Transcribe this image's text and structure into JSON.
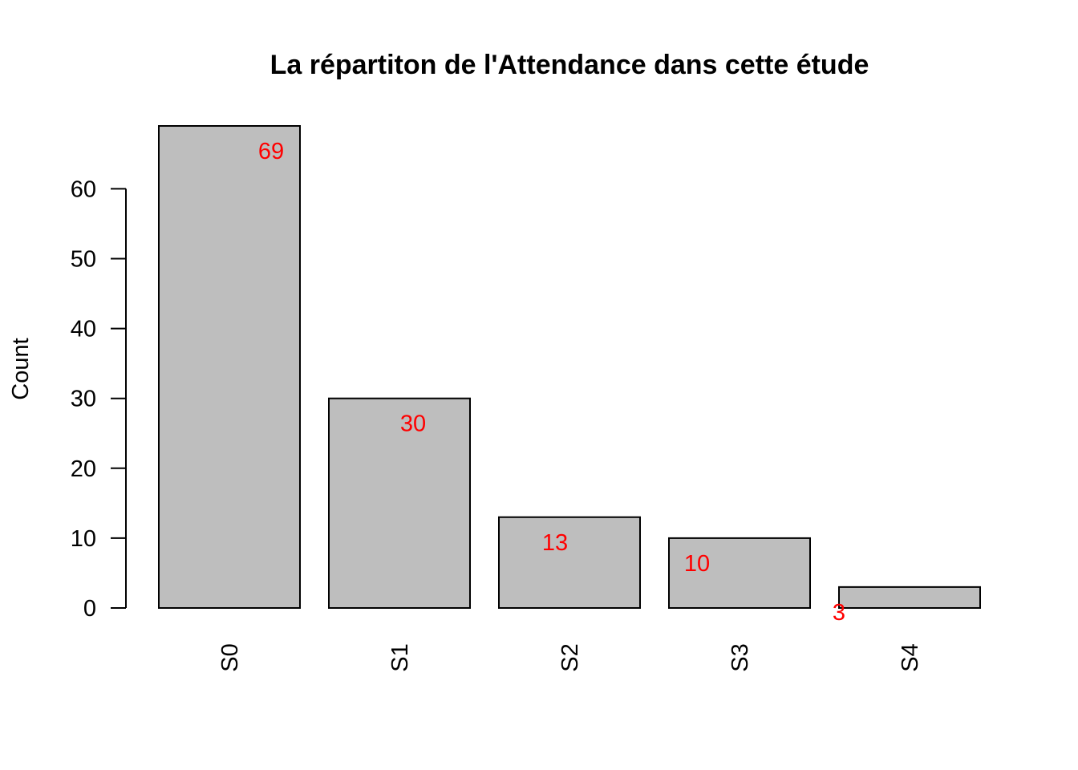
{
  "chart_data": {
    "type": "bar",
    "title": "La répartiton de l'Attendance dans cette étude",
    "xlabel": "",
    "ylabel": "Count",
    "categories": [
      "S0",
      "S1",
      "S2",
      "S3",
      "S4"
    ],
    "values": [
      69,
      30,
      13,
      10,
      3
    ],
    "data_labels": [
      "69",
      "30",
      "13",
      "10",
      "3"
    ],
    "yticks": [
      "0",
      "10",
      "20",
      "30",
      "40",
      "50",
      "60"
    ],
    "ylim": [
      0,
      69
    ],
    "grid": false,
    "legend": "none",
    "colors": {
      "bar_fill": "#bebebe",
      "bar_stroke": "#000000",
      "label": "#ff0000"
    }
  }
}
